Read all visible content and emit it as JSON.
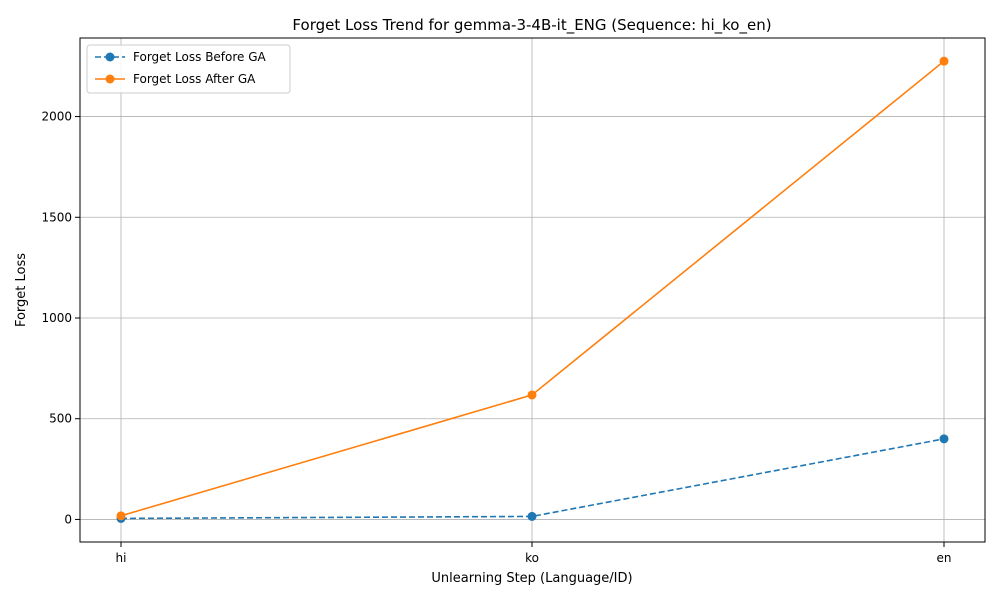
{
  "chart_data": {
    "type": "line",
    "title": "Forget Loss Trend for gemma-3-4B-it_ENG (Sequence: hi_ko_en)",
    "xlabel": "Unlearning Step (Language/ID)",
    "ylabel": "Forget Loss",
    "categories": [
      "hi",
      "ko",
      "en"
    ],
    "ylim": [
      -112,
      2390
    ],
    "yticks": [
      0,
      500,
      1000,
      1500,
      2000
    ],
    "grid": true,
    "legend_position": "top-left",
    "series": [
      {
        "name": "Forget Loss Before GA",
        "values": [
          5,
          15,
          400
        ],
        "color": "#1f77b4",
        "line_style": "dashed",
        "marker": "circle"
      },
      {
        "name": "Forget Loss After GA",
        "values": [
          18,
          618,
          2275
        ],
        "color": "#ff7f0e",
        "line_style": "solid",
        "marker": "circle"
      }
    ]
  }
}
